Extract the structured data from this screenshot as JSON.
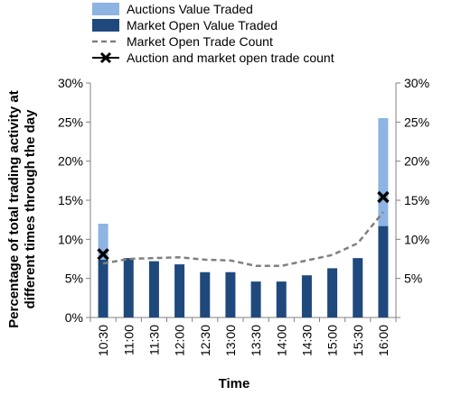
{
  "chart_data": {
    "type": "bar",
    "categories": [
      "10:30",
      "11:00",
      "11:30",
      "12:00",
      "12:30",
      "13:00",
      "13:30",
      "14:00",
      "14:30",
      "15:00",
      "15:30",
      "16:00"
    ],
    "series": [
      {
        "name": "Auctions Value Traded",
        "kind": "stacked-bar",
        "values": [
          4.6,
          0,
          0,
          0,
          0,
          0,
          0,
          0,
          0,
          0,
          0,
          13.8
        ],
        "color": "#8db4e2"
      },
      {
        "name": "Market Open Value Traded",
        "kind": "stacked-bar",
        "values": [
          7.4,
          7.6,
          7.2,
          6.8,
          5.8,
          5.8,
          4.6,
          4.6,
          5.4,
          6.3,
          7.6,
          11.7
        ],
        "color": "#1f497d"
      },
      {
        "name": "Market Open Trade Count",
        "kind": "dashed-line",
        "values": [
          6.9,
          7.5,
          7.6,
          7.7,
          7.4,
          7.3,
          6.6,
          6.6,
          7.3,
          8.0,
          9.5,
          13.5
        ],
        "color": "#808080"
      },
      {
        "name": "Auction and market open trade count",
        "kind": "marker",
        "points": [
          {
            "category": "10:30",
            "value": 8.1
          },
          {
            "category": "16:00",
            "value": 15.4
          }
        ],
        "color": "#000000"
      }
    ],
    "xlabel": "Time",
    "ylabel": "Percentage of total trading activity at different times through the day",
    "ylabel_lines": [
      "Percentage of total trading activity at",
      "different times through the day"
    ],
    "ylim": [
      0,
      30
    ],
    "left_ticks": [
      "0%",
      "5%",
      "10%",
      "15%",
      "20%",
      "25%",
      "30%"
    ],
    "right_ticks": [
      "",
      "5%",
      "10%",
      "15%",
      "20%",
      "25%",
      "30%"
    ],
    "grid": false,
    "legend_position": "top"
  }
}
